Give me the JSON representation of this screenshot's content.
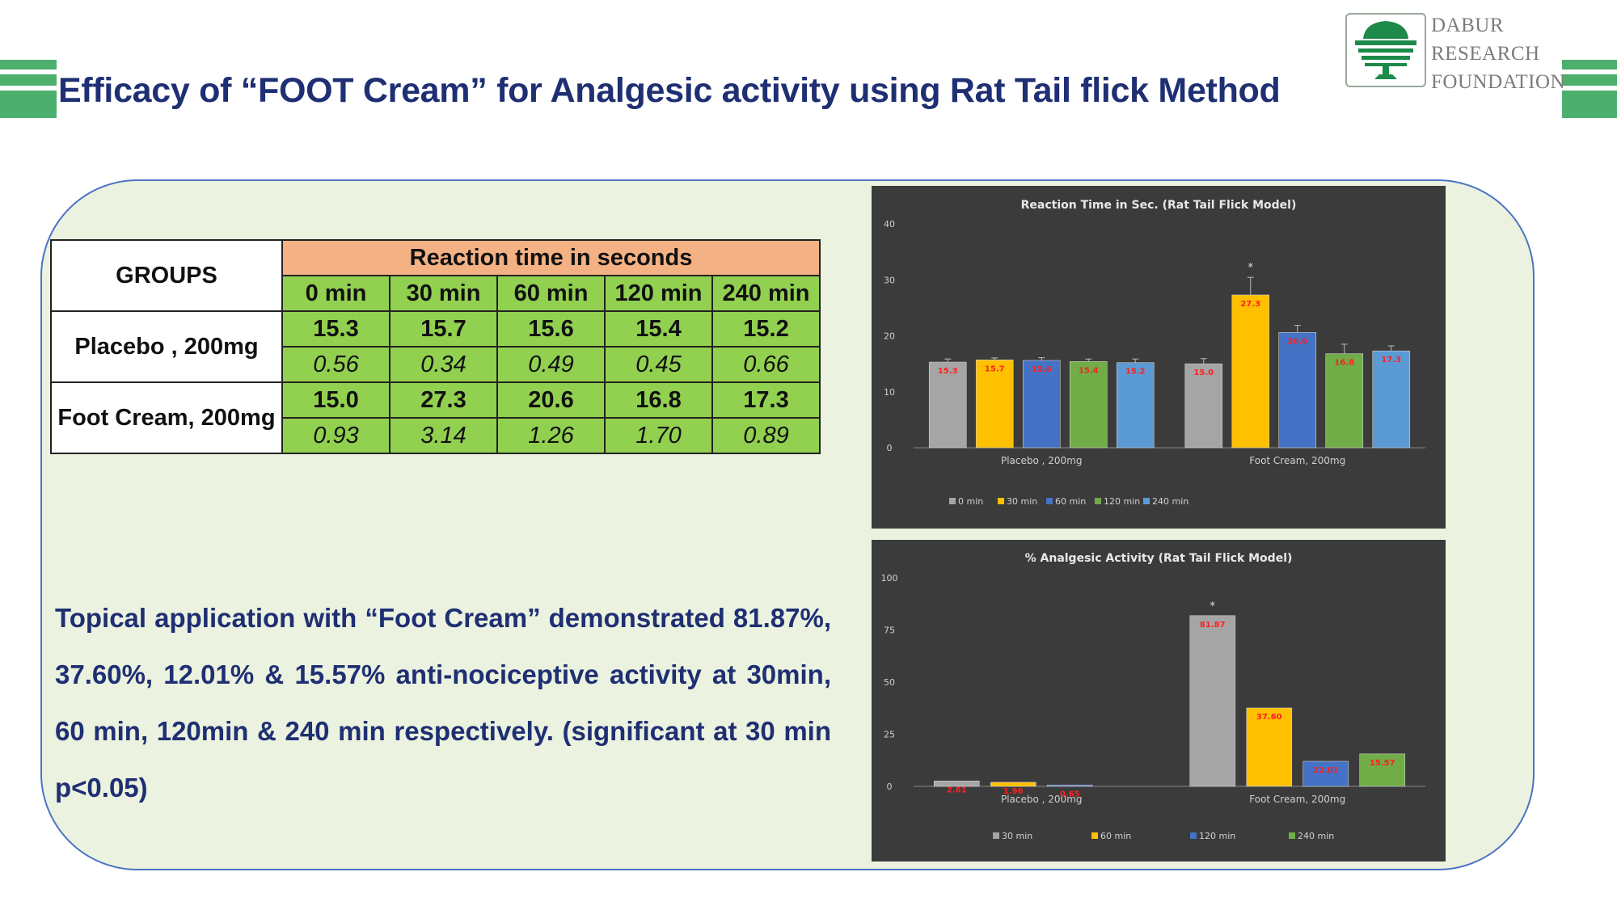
{
  "title": "Efficacy of “FOOT Cream” for Analgesic activity using Rat Tail flick Method",
  "logo": {
    "lines": [
      "DABUR",
      "RESEARCH",
      "FOUNDATION"
    ]
  },
  "table": {
    "groups_header": "GROUPS",
    "reaction_header": "Reaction time in seconds",
    "time_headers": [
      "0 min",
      "30 min",
      "60 min",
      "120 min",
      "240 min"
    ],
    "rows": [
      {
        "group": "Placebo , 200mg",
        "means": [
          "15.3",
          "15.7",
          "15.6",
          "15.4",
          "15.2"
        ],
        "sds": [
          "0.56",
          "0.34",
          "0.49",
          "0.45",
          "0.66"
        ]
      },
      {
        "group": "Foot Cream, 200mg",
        "means": [
          "15.0",
          "27.3",
          "20.6",
          "16.8",
          "17.3"
        ],
        "sds": [
          "0.93",
          "3.14",
          "1.26",
          "1.70",
          "0.89"
        ]
      }
    ]
  },
  "conclusion": "Topical application with “Foot Cream” demonstrated 81.87%, 37.60%, 12.01% & 15.57% anti-nociceptive activity at 30min, 60 min, 120min & 240 min respectively. (significant at 30 min p<0.05)",
  "colors": {
    "title": "#1f2f73",
    "accent_green": "#4caf6e",
    "panel_bg": "#ebf2df",
    "chart_bg": "#3b3b3b"
  },
  "chart_data": [
    {
      "type": "bar",
      "title": "Reaction Time in Sec. (Rat Tail Flick Model)",
      "categories": [
        "Placebo , 200mg",
        "Foot Cream, 200mg"
      ],
      "ylim": [
        0,
        40
      ],
      "yticks": [
        "0",
        "10",
        "20",
        "30",
        "40"
      ],
      "grid": false,
      "legend_position": "bottom",
      "series": [
        {
          "name": "0 min",
          "color": "#a5a5a5",
          "values": [
            15.3,
            15.0
          ],
          "labels": [
            "15.3",
            "15.0"
          ],
          "errors": [
            0.56,
            0.93
          ]
        },
        {
          "name": "30 min",
          "color": "#ffc000",
          "values": [
            15.7,
            27.3
          ],
          "labels": [
            "15.7",
            "27.3"
          ],
          "errors": [
            0.34,
            3.14
          ]
        },
        {
          "name": "60 min",
          "color": "#4472c4",
          "values": [
            15.6,
            20.6
          ],
          "labels": [
            "15.6",
            "20.6"
          ],
          "errors": [
            0.49,
            1.26
          ]
        },
        {
          "name": "120 min",
          "color": "#70ad47",
          "values": [
            15.4,
            16.8
          ],
          "labels": [
            "15.4",
            "16.8"
          ],
          "errors": [
            0.45,
            1.7
          ]
        },
        {
          "name": "240 min",
          "color": "#5b9bd5",
          "values": [
            15.2,
            17.3
          ],
          "labels": [
            "15.2",
            "17.3"
          ],
          "errors": [
            0.66,
            0.89
          ]
        }
      ],
      "significance": [
        {
          "series": "30 min",
          "category": "Foot Cream, 200mg",
          "mark": "*"
        }
      ]
    },
    {
      "type": "bar",
      "title": "% Analgesic Activity (Rat Tail Flick Model)",
      "categories": [
        "Placebo , 200mg",
        "Foot Cream, 200mg"
      ],
      "ylim": [
        0,
        100
      ],
      "yticks": [
        "0",
        "25",
        "50",
        "75",
        "100"
      ],
      "grid": false,
      "legend_position": "bottom",
      "series": [
        {
          "name": "30 min",
          "color": "#a5a5a5",
          "values": [
            2.6,
            81.87
          ],
          "labels": [
            "2.61",
            "81.87"
          ]
        },
        {
          "name": "60 min",
          "color": "#ffc000",
          "values": [
            1.96,
            37.6
          ],
          "labels": [
            "1.96",
            "37.60"
          ]
        },
        {
          "name": "120 min",
          "color": "#4472c4",
          "values": [
            0.65,
            12.01
          ],
          "labels": [
            "0.65",
            "12.01"
          ]
        },
        {
          "name": "240 min",
          "color": "#70ad47",
          "values": [
            0,
            15.57
          ],
          "labels": [
            "",
            "15.57"
          ]
        }
      ],
      "significance": [
        {
          "series": "30 min",
          "category": "Foot Cream, 200mg",
          "mark": "*"
        }
      ]
    }
  ]
}
